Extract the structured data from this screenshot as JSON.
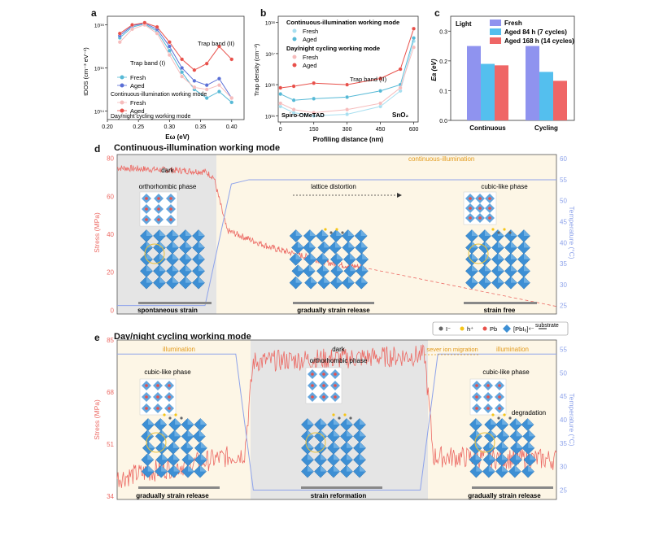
{
  "panel_a": {
    "label": "a",
    "ylabel": "tDOS (cm⁻³ eV⁻¹)",
    "xlabel": "Eω (eV)",
    "xticks": [
      "0.20",
      "0.25",
      "0.30",
      "0.35",
      "0.40"
    ],
    "yticks": [
      "10¹⁶",
      "10¹⁵",
      "10¹⁴"
    ],
    "ann_band1": "Trap band (I)",
    "ann_band2": "Trap band (II)",
    "legend_fresh": "Fresh",
    "legend_aged": "Aged",
    "mode1": "Continuous-illumination working mode",
    "mode2": "Day/night cycling working mode"
  },
  "panel_b": {
    "label": "b",
    "ylabel": "Trap density (cm⁻³)",
    "xlabel": "Profiling distance (nm)",
    "xticks": [
      "0",
      "150",
      "300",
      "450",
      "600"
    ],
    "yticks": [
      "10¹⁸",
      "10¹⁷",
      "10¹⁶",
      "10¹⁵"
    ],
    "mode1": "Continuous-illumination working mode",
    "mode2": "Day/night cycling working mode",
    "legend_fresh": "Fresh",
    "legend_aged": "Aged",
    "ann_band2": "Trap band (II)",
    "left_label": "Spiro-OMeTAD",
    "right_label": "SnO₂"
  },
  "panel_c": {
    "label": "c",
    "corner": "Light",
    "ylabel": "Ea (eV)"
  },
  "panel_d": {
    "label": "d",
    "title": "Continuous-illumination working mode",
    "ylabel_left": "Stress (MPa)",
    "ylabel_right": "Temperature (°C)",
    "yticks_left": [
      "80",
      "60",
      "40",
      "20",
      "0"
    ],
    "yticks_right": [
      "60",
      "55",
      "50",
      "45",
      "40",
      "35",
      "30",
      "25"
    ],
    "dark": "dark",
    "illum": "continuous-illumination",
    "phase1": "orthorhombic phase",
    "phase2": "cubic-like phase",
    "lattice": "lattice distortion",
    "cap1": "spontaneous strain",
    "cap2": "gradually strain release",
    "cap3": "strain free"
  },
  "panel_e": {
    "label": "e",
    "title": "Day/night cycling working mode",
    "ylabel_left": "Stress (MPa)",
    "ylabel_right": "Temperature (°C)",
    "yticks_left": [
      "85",
      "68",
      "51",
      "34"
    ],
    "yticks_right": [
      "55",
      "50",
      "45",
      "40",
      "35",
      "30",
      "25"
    ],
    "illum1": "illumination",
    "dark": "dark",
    "ion": "sever ion migration",
    "illum2": "illumination",
    "phase_a": "cubic-like phase",
    "phase_b": "orthorhombic phase",
    "phase_c": "cubic-like phase",
    "degradation": "degradation",
    "cap1": "gradually strain release",
    "cap2": "strain reformation",
    "cap3": "gradually strain release",
    "legend": {
      "iodide": "I⁻",
      "hole": "h⁺",
      "pb": "Pb",
      "octa": "[PbI₆]⁴⁻",
      "substrate": "substrate"
    }
  },
  "colors": {
    "fresh": "#56b9d6",
    "aged": "#e8504a",
    "bar_fresh": "#8f93ef",
    "bar_aged84": "#54bfee",
    "bar_aged168": "#ef6666",
    "stress": "#ec6a64",
    "temp": "#8ea3ea",
    "dark_bg": "#e5e5e5",
    "light_bg": "#fdf6e6",
    "octa": "#3d8fd4"
  },
  "chart_data": [
    {
      "type": "line",
      "panel": "a",
      "xlabel": "Eω (eV)",
      "ylabel": "tDOS (cm⁻³ eV⁻¹)",
      "yscale": "log",
      "xlim": [
        0.2,
        0.42
      ],
      "ylim_exp": [
        13.8,
        16.2
      ],
      "series": [
        {
          "name": "Fresh",
          "mode": "continuous",
          "x": [
            0.22,
            0.24,
            0.26,
            0.28,
            0.3,
            0.32,
            0.34,
            0.36,
            0.38,
            0.4
          ],
          "y_exp": [
            15.7,
            15.95,
            16.02,
            15.85,
            15.4,
            14.9,
            14.5,
            14.3,
            14.45,
            14.2
          ]
        },
        {
          "name": "Aged",
          "mode": "continuous",
          "x": [
            0.22,
            0.24,
            0.26,
            0.28,
            0.3,
            0.32,
            0.34,
            0.36,
            0.38,
            0.4
          ],
          "y_exp": [
            15.75,
            15.98,
            16.04,
            15.9,
            15.5,
            15.0,
            14.7,
            14.6,
            14.75,
            14.3
          ]
        },
        {
          "name": "Fresh",
          "mode": "cycling",
          "x": [
            0.22,
            0.24,
            0.26,
            0.28,
            0.3,
            0.32,
            0.34,
            0.36,
            0.38,
            0.4
          ],
          "y_exp": [
            15.6,
            15.9,
            16.0,
            15.8,
            15.3,
            14.8,
            14.55,
            14.5,
            14.6,
            14.3
          ]
        },
        {
          "name": "Aged",
          "mode": "cycling",
          "x": [
            0.22,
            0.24,
            0.26,
            0.28,
            0.3,
            0.32,
            0.34,
            0.36,
            0.38,
            0.4
          ],
          "y_exp": [
            15.8,
            16.0,
            16.05,
            15.95,
            15.6,
            15.2,
            14.95,
            15.1,
            15.5,
            15.2
          ]
        }
      ]
    },
    {
      "type": "line",
      "panel": "b",
      "xlabel": "Profiling distance (nm)",
      "ylabel": "Trap density (cm⁻³)",
      "yscale": "log",
      "xlim": [
        -10,
        620
      ],
      "ylim_exp": [
        14.8,
        18.2
      ],
      "series": [
        {
          "name": "Fresh",
          "mode": "continuous",
          "x": [
            0,
            60,
            150,
            300,
            450,
            540,
            600
          ],
          "y_exp": [
            15.3,
            15.1,
            15.0,
            15.05,
            15.3,
            15.8,
            17.4
          ]
        },
        {
          "name": "Aged",
          "mode": "continuous",
          "x": [
            0,
            60,
            150,
            300,
            450,
            540,
            600
          ],
          "y_exp": [
            15.7,
            15.5,
            15.55,
            15.6,
            15.8,
            16.0,
            17.5
          ]
        },
        {
          "name": "Fresh",
          "mode": "cycling",
          "x": [
            0,
            60,
            150,
            300,
            450,
            540,
            600
          ],
          "y_exp": [
            15.4,
            15.2,
            15.1,
            15.2,
            15.4,
            15.9,
            17.2
          ]
        },
        {
          "name": "Aged",
          "mode": "cycling",
          "x": [
            0,
            60,
            150,
            300,
            450,
            540,
            600
          ],
          "y_exp": [
            15.9,
            15.95,
            16.05,
            16.0,
            16.2,
            16.5,
            17.8
          ]
        }
      ]
    },
    {
      "type": "bar",
      "panel": "c",
      "title": "Light",
      "ylabel": "Ea (eV)",
      "ylim": [
        0,
        0.35
      ],
      "yticks": [
        0,
        0.1,
        0.2,
        0.3
      ],
      "categories": [
        "Continuous",
        "Cycling"
      ],
      "series": [
        {
          "name": "Fresh",
          "values": [
            0.25,
            0.25
          ]
        },
        {
          "name": "Aged 84 h (7 cycles)",
          "values": [
            0.19,
            0.163
          ]
        },
        {
          "name": "Aged 168 h (14 cycles)",
          "values": [
            0.185,
            0.133
          ]
        }
      ]
    },
    {
      "type": "line",
      "panel": "d",
      "ylabel": "Stress (MPa)",
      "y2label": "Temperature (°C)",
      "ylim": [
        -2,
        82
      ],
      "y2lim": [
        23,
        61
      ],
      "series": [
        {
          "name": "Stress",
          "x": [
            0,
            0.2,
            0.22,
            0.25,
            0.35,
            0.5,
            0.6,
            1.0
          ],
          "y": [
            75,
            73,
            70,
            42,
            33,
            24,
            22,
            2
          ]
        },
        {
          "name": "Temperature",
          "x": [
            0,
            0.2,
            0.26,
            0.3,
            1.0
          ],
          "y": [
            25,
            25,
            54,
            55,
            55
          ]
        }
      ]
    },
    {
      "type": "line",
      "panel": "e",
      "ylabel": "Stress (MPa)",
      "y2label": "Temperature (°C)",
      "ylim": [
        33,
        85
      ],
      "y2lim": [
        23,
        57
      ],
      "series": [
        {
          "name": "Stress",
          "x": [
            0,
            0.29,
            0.31,
            0.7,
            0.72,
            1.0
          ],
          "y": [
            40,
            48,
            78,
            80,
            47,
            46
          ]
        },
        {
          "name": "Temperature",
          "x": [
            0,
            0.27,
            0.31,
            0.69,
            0.73,
            1.0
          ],
          "y": [
            54,
            54,
            25,
            25,
            54,
            54
          ]
        }
      ]
    }
  ]
}
